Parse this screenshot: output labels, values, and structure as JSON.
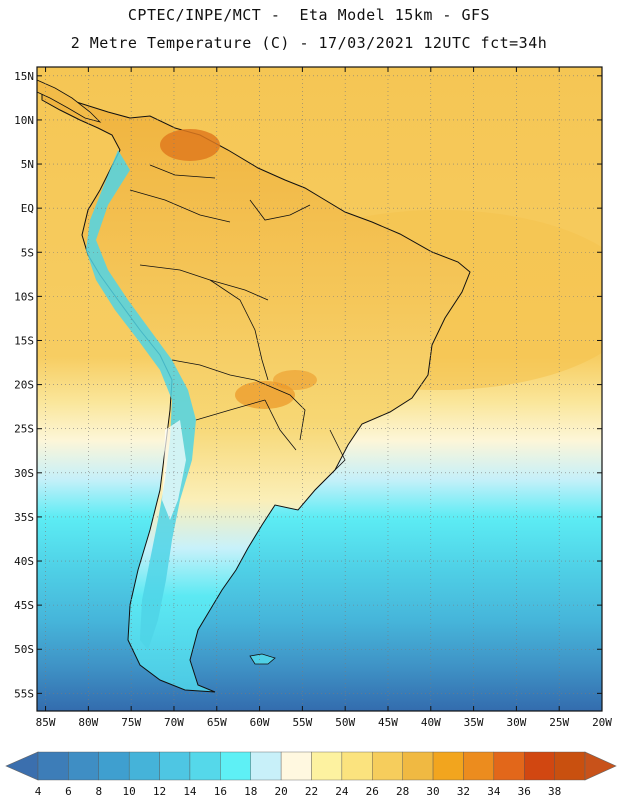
{
  "header": {
    "line1": "CPTEC/INPE/MCT -  Eta Model 15km - GFS",
    "line2": "2 Metre Temperature (C) - 17/03/2021 12UTC fct=34h"
  },
  "map": {
    "lat_labels": [
      "15N",
      "10N",
      "5N",
      "EQ",
      "5S",
      "10S",
      "15S",
      "20S",
      "25S",
      "30S",
      "35S",
      "40S",
      "45S",
      "50S",
      "55S"
    ],
    "lon_labels": [
      "85W",
      "80W",
      "75W",
      "70W",
      "65W",
      "60W",
      "55W",
      "50W",
      "45W",
      "40W",
      "35W",
      "30W",
      "25W",
      "20W"
    ],
    "lat_range": [
      -57,
      16
    ],
    "lon_range": [
      -86,
      -20
    ],
    "grid": "dotted",
    "land_base_color": "#f3c65a",
    "ocean_warm_color": "#f6ca54"
  },
  "colorbar": {
    "labels": [
      "4",
      "6",
      "8",
      "10",
      "12",
      "14",
      "16",
      "18",
      "20",
      "22",
      "24",
      "26",
      "28",
      "30",
      "32",
      "34",
      "36",
      "38"
    ],
    "colors": [
      "#3d7db8",
      "#3f8ec4",
      "#3f9fcf",
      "#45b3d9",
      "#4ec6e3",
      "#55d8ea",
      "#5ef0f5",
      "#c8f0f9",
      "#fff8e0",
      "#fdf2a0",
      "#fbe37e",
      "#f6cd5c",
      "#f0b942",
      "#f2a51e",
      "#ec8c1e",
      "#e2671a",
      "#d14711",
      "#c9500f"
    ],
    "low_arrow_color": "#3b6fae",
    "high_arrow_color": "#c8521a"
  }
}
